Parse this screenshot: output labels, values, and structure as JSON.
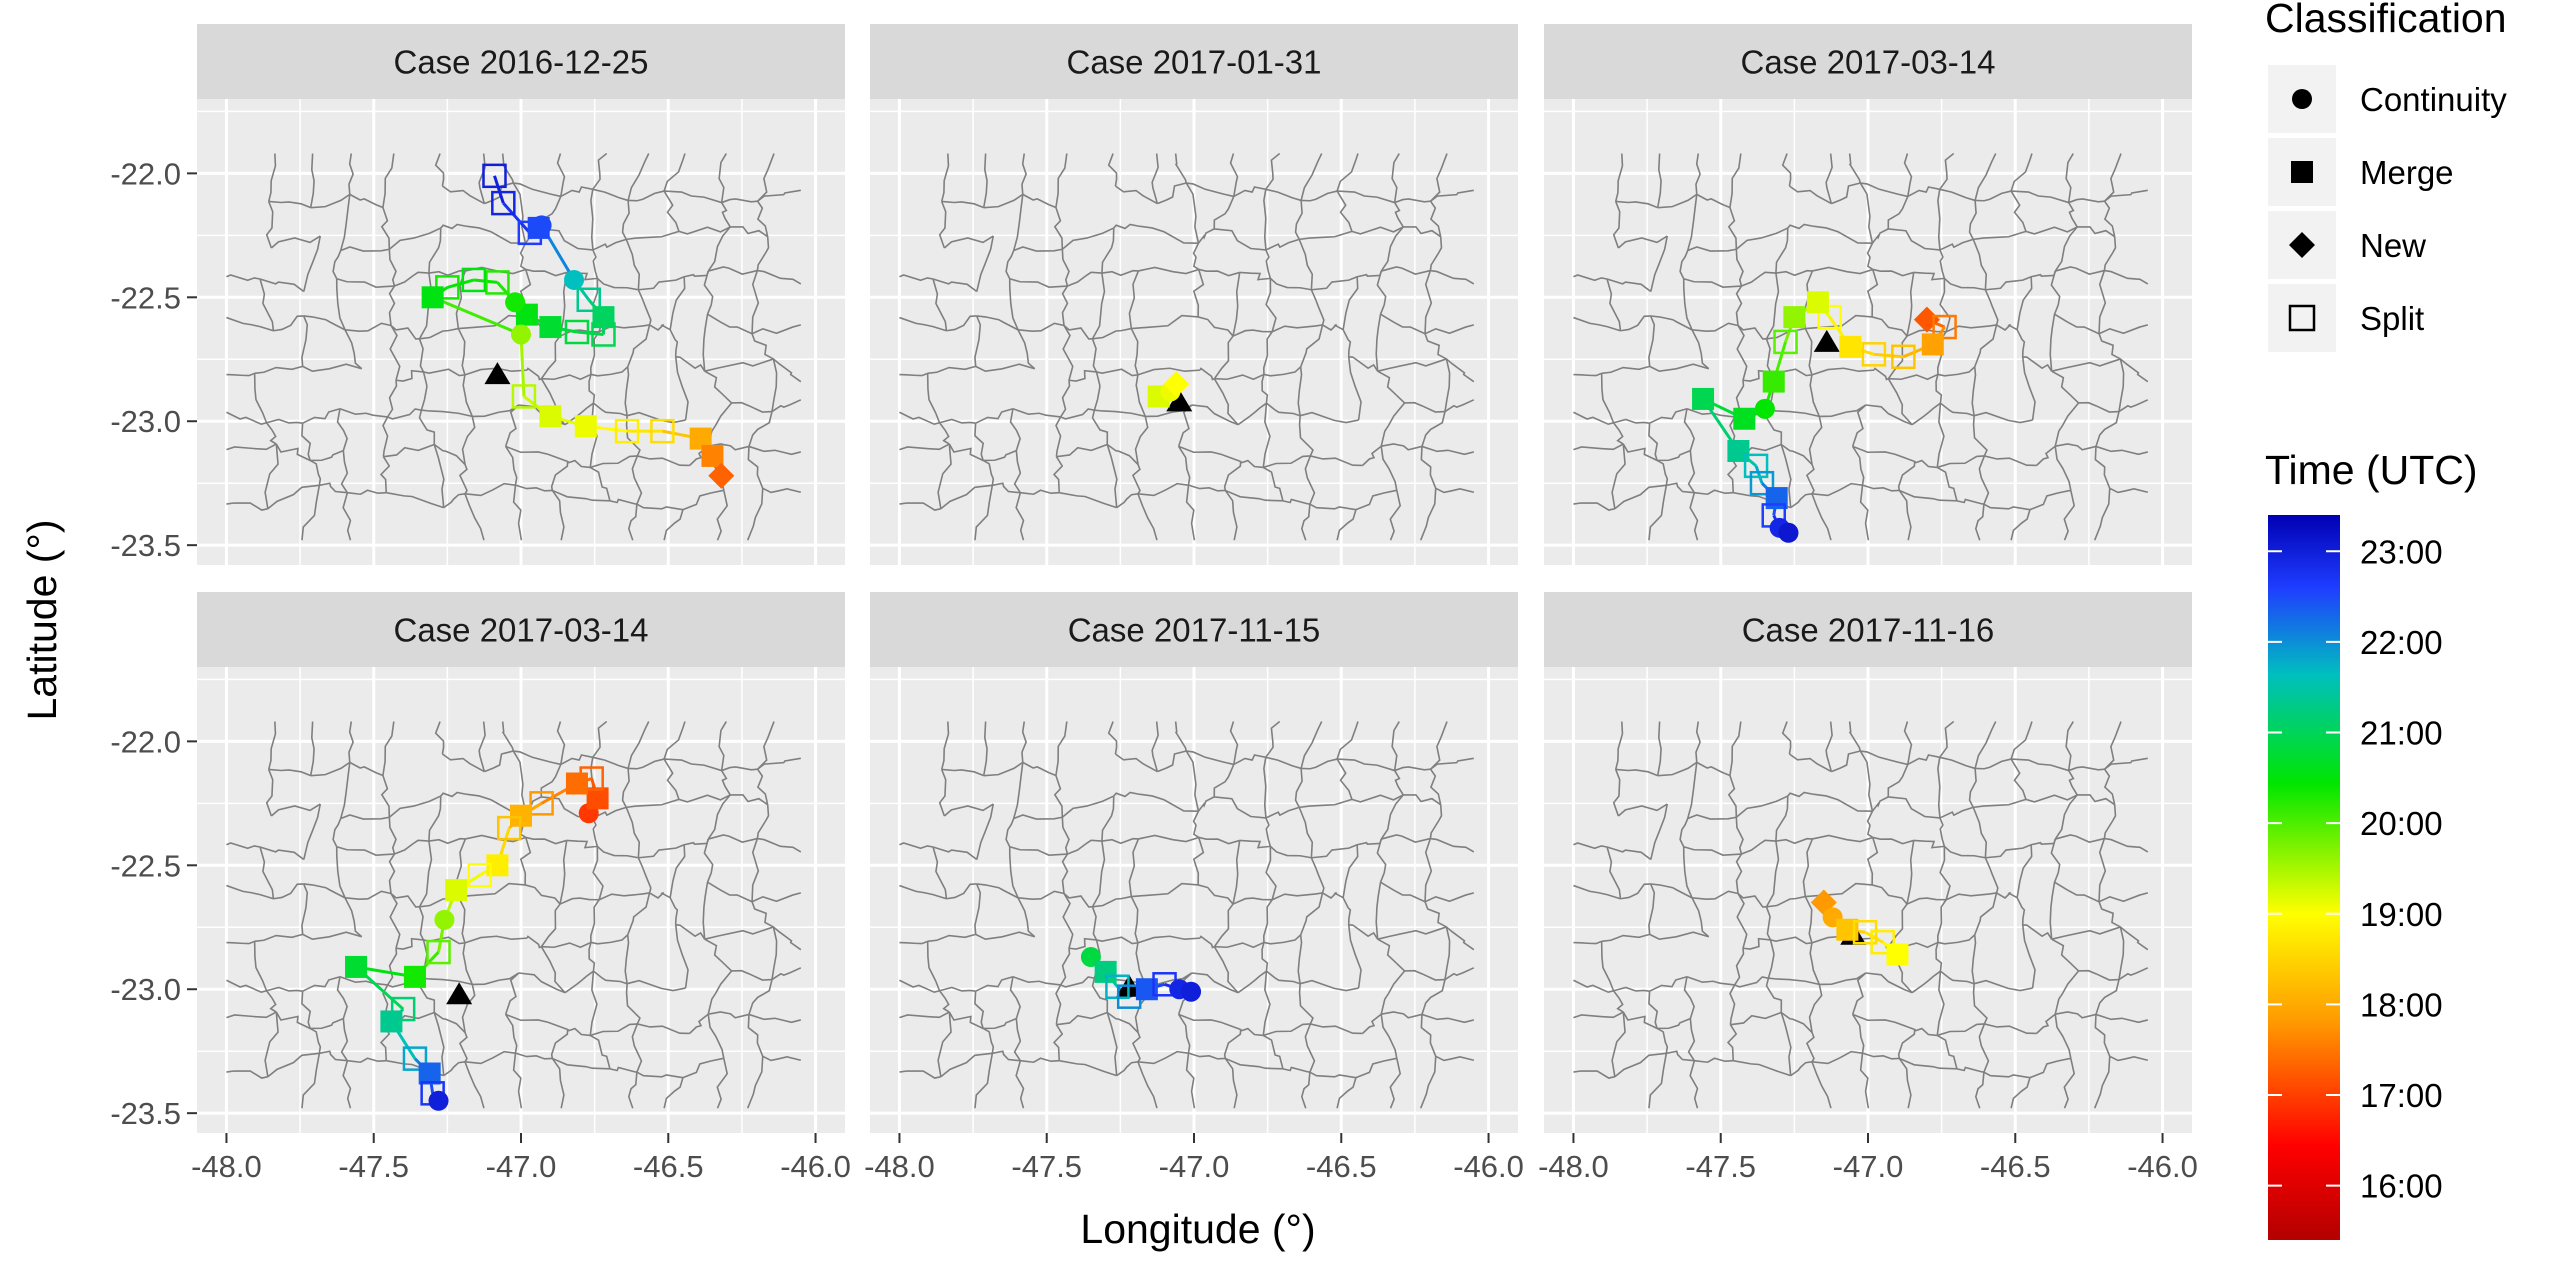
{
  "chart_data": {
    "type": "scatter",
    "xlabel": "Longitude (°)",
    "ylabel": "Latitude (°)",
    "xlim": [
      -48.1,
      -45.9
    ],
    "ylim": [
      -23.58,
      -21.7
    ],
    "x_ticks": [
      -48.0,
      -47.5,
      -47.0,
      -46.5,
      -46.0
    ],
    "x_tick_labels": [
      "-48.0",
      "-47.5",
      "-47.0",
      "-46.5",
      "-46.0"
    ],
    "y_ticks": [
      -22.0,
      -22.5,
      -23.0,
      -23.5
    ],
    "y_tick_labels": [
      "-22.0",
      "-22.5",
      "-23.0",
      "-23.5"
    ],
    "grid": true,
    "legend": {
      "shape_title": "Classification",
      "shapes": [
        {
          "label": "Continuity",
          "symbol": "circle"
        },
        {
          "label": "Merge",
          "symbol": "square"
        },
        {
          "label": "New",
          "symbol": "diamond"
        },
        {
          "label": "Split",
          "symbol": "open-square"
        }
      ],
      "color_title": "Time (UTC)",
      "color_range": [
        15.4,
        23.4
      ],
      "color_ticks": [
        16,
        17,
        18,
        19,
        20,
        21,
        22,
        23
      ],
      "color_tick_labels": [
        "16:00",
        "17:00",
        "18:00",
        "19:00",
        "20:00",
        "21:00",
        "22:00",
        "23:00"
      ],
      "placement": "right"
    },
    "panels": [
      {
        "title": "Case 2016-12-25",
        "radar": [
          -47.08,
          -22.81
        ],
        "track": [
          {
            "lon": -47.09,
            "lat": -22.01,
            "t": 23.0,
            "c": "Split"
          },
          {
            "lon": -47.06,
            "lat": -22.12,
            "t": 22.9,
            "c": "Split"
          },
          {
            "lon": -46.97,
            "lat": -22.24,
            "t": 22.6,
            "c": "Split"
          },
          {
            "lon": -46.94,
            "lat": -22.22,
            "t": 22.5,
            "c": "Merge"
          },
          {
            "lon": -46.93,
            "lat": -22.21,
            "t": 22.5,
            "c": "Continuity"
          },
          {
            "lon": -46.82,
            "lat": -22.43,
            "t": 21.6,
            "c": "Continuity"
          },
          {
            "lon": -46.77,
            "lat": -22.51,
            "t": 21.3,
            "c": "Split"
          },
          {
            "lon": -46.72,
            "lat": -22.58,
            "t": 21.0,
            "c": "Merge"
          },
          {
            "lon": -46.72,
            "lat": -22.65,
            "t": 20.9,
            "c": "Split"
          },
          {
            "lon": -46.81,
            "lat": -22.64,
            "t": 20.8,
            "c": "Split"
          },
          {
            "lon": -46.9,
            "lat": -22.62,
            "t": 20.7,
            "c": "Merge"
          },
          {
            "lon": -46.98,
            "lat": -22.57,
            "t": 20.5,
            "c": "Merge"
          },
          {
            "lon": -47.02,
            "lat": -22.52,
            "t": 20.3,
            "c": "Continuity"
          },
          {
            "lon": -47.08,
            "lat": -22.44,
            "t": 20.2,
            "c": "Split"
          },
          {
            "lon": -47.16,
            "lat": -22.43,
            "t": 20.5,
            "c": "Split"
          },
          {
            "lon": -47.25,
            "lat": -22.46,
            "t": 20.3,
            "c": "Split"
          },
          {
            "lon": -47.3,
            "lat": -22.5,
            "t": 20.5,
            "c": "Merge"
          },
          {
            "lon": -47.0,
            "lat": -22.65,
            "t": 19.6,
            "c": "Continuity"
          },
          {
            "lon": -46.99,
            "lat": -22.9,
            "t": 19.4,
            "c": "Split"
          },
          {
            "lon": -46.9,
            "lat": -22.98,
            "t": 19.2,
            "c": "Merge"
          },
          {
            "lon": -46.78,
            "lat": -23.02,
            "t": 19.1,
            "c": "Merge"
          },
          {
            "lon": -46.64,
            "lat": -23.04,
            "t": 18.8,
            "c": "Split"
          },
          {
            "lon": -46.52,
            "lat": -23.04,
            "t": 18.6,
            "c": "Split"
          },
          {
            "lon": -46.39,
            "lat": -23.07,
            "t": 18.0,
            "c": "Merge"
          },
          {
            "lon": -46.35,
            "lat": -23.14,
            "t": 17.6,
            "c": "Merge"
          },
          {
            "lon": -46.32,
            "lat": -23.22,
            "t": 17.3,
            "c": "New"
          }
        ]
      },
      {
        "title": "Case 2017-01-31",
        "radar": [
          -47.05,
          -22.92
        ],
        "track": [
          {
            "lon": -47.12,
            "lat": -22.9,
            "t": 19.2,
            "c": "Merge"
          },
          {
            "lon": -47.08,
            "lat": -22.88,
            "t": 19.1,
            "c": "Continuity"
          },
          {
            "lon": -47.06,
            "lat": -22.85,
            "t": 19.0,
            "c": "New"
          }
        ]
      },
      {
        "title": "Case 2017-03-14",
        "radar": [
          -47.14,
          -22.68
        ],
        "track": [
          {
            "lon": -46.8,
            "lat": -22.59,
            "t": 17.2,
            "c": "New"
          },
          {
            "lon": -46.74,
            "lat": -22.62,
            "t": 17.5,
            "c": "Split"
          },
          {
            "lon": -46.78,
            "lat": -22.69,
            "t": 17.9,
            "c": "Merge"
          },
          {
            "lon": -46.88,
            "lat": -22.74,
            "t": 18.3,
            "c": "Split"
          },
          {
            "lon": -46.98,
            "lat": -22.73,
            "t": 18.5,
            "c": "Split"
          },
          {
            "lon": -47.06,
            "lat": -22.7,
            "t": 18.7,
            "c": "Merge"
          },
          {
            "lon": -47.13,
            "lat": -22.58,
            "t": 19.0,
            "c": "Split"
          },
          {
            "lon": -47.17,
            "lat": -22.52,
            "t": 19.2,
            "c": "Merge"
          },
          {
            "lon": -47.25,
            "lat": -22.58,
            "t": 19.6,
            "c": "Merge"
          },
          {
            "lon": -47.28,
            "lat": -22.68,
            "t": 19.9,
            "c": "Split"
          },
          {
            "lon": -47.32,
            "lat": -22.84,
            "t": 20.1,
            "c": "Merge"
          },
          {
            "lon": -47.35,
            "lat": -22.95,
            "t": 20.4,
            "c": "Continuity"
          },
          {
            "lon": -47.42,
            "lat": -22.99,
            "t": 20.6,
            "c": "Merge"
          },
          {
            "lon": -47.56,
            "lat": -22.91,
            "t": 20.9,
            "c": "Merge"
          },
          {
            "lon": -47.44,
            "lat": -23.12,
            "t": 21.3,
            "c": "Merge"
          },
          {
            "lon": -47.38,
            "lat": -23.18,
            "t": 21.6,
            "c": "Split"
          },
          {
            "lon": -47.36,
            "lat": -23.25,
            "t": 21.9,
            "c": "Split"
          },
          {
            "lon": -47.31,
            "lat": -23.31,
            "t": 22.3,
            "c": "Merge"
          },
          {
            "lon": -47.32,
            "lat": -23.38,
            "t": 22.6,
            "c": "Split"
          },
          {
            "lon": -47.3,
            "lat": -23.43,
            "t": 22.9,
            "c": "Continuity"
          },
          {
            "lon": -47.27,
            "lat": -23.45,
            "t": 23.1,
            "c": "Continuity"
          }
        ]
      },
      {
        "title": "Case 2017-03-14",
        "radar": [
          -47.21,
          -23.02
        ],
        "track": [
          {
            "lon": -46.77,
            "lat": -22.29,
            "t": 16.9,
            "c": "Continuity"
          },
          {
            "lon": -46.74,
            "lat": -22.23,
            "t": 17.1,
            "c": "Merge"
          },
          {
            "lon": -46.76,
            "lat": -22.15,
            "t": 17.3,
            "c": "Split"
          },
          {
            "lon": -46.81,
            "lat": -22.17,
            "t": 17.4,
            "c": "Merge"
          },
          {
            "lon": -46.93,
            "lat": -22.25,
            "t": 17.8,
            "c": "Split"
          },
          {
            "lon": -47.0,
            "lat": -22.3,
            "t": 18.1,
            "c": "Merge"
          },
          {
            "lon": -47.04,
            "lat": -22.35,
            "t": 18.3,
            "c": "Split"
          },
          {
            "lon": -47.08,
            "lat": -22.5,
            "t": 18.8,
            "c": "Merge"
          },
          {
            "lon": -47.14,
            "lat": -22.54,
            "t": 19.0,
            "c": "Split"
          },
          {
            "lon": -47.22,
            "lat": -22.6,
            "t": 19.2,
            "c": "Merge"
          },
          {
            "lon": -47.26,
            "lat": -22.72,
            "t": 19.6,
            "c": "Continuity"
          },
          {
            "lon": -47.28,
            "lat": -22.85,
            "t": 19.9,
            "c": "Split"
          },
          {
            "lon": -47.36,
            "lat": -22.95,
            "t": 20.3,
            "c": "Merge"
          },
          {
            "lon": -47.56,
            "lat": -22.91,
            "t": 20.7,
            "c": "Merge"
          },
          {
            "lon": -47.4,
            "lat": -23.08,
            "t": 21.1,
            "c": "Split"
          },
          {
            "lon": -47.44,
            "lat": -23.13,
            "t": 21.3,
            "c": "Merge"
          },
          {
            "lon": -47.36,
            "lat": -23.28,
            "t": 21.8,
            "c": "Split"
          },
          {
            "lon": -47.31,
            "lat": -23.34,
            "t": 22.3,
            "c": "Merge"
          },
          {
            "lon": -47.3,
            "lat": -23.42,
            "t": 22.7,
            "c": "Split"
          },
          {
            "lon": -47.28,
            "lat": -23.45,
            "t": 23.0,
            "c": "Continuity"
          }
        ]
      },
      {
        "title": "Case 2017-11-15",
        "radar": [
          -47.22,
          -22.99
        ],
        "track": [
          {
            "lon": -47.35,
            "lat": -22.87,
            "t": 20.8,
            "c": "Continuity"
          },
          {
            "lon": -47.3,
            "lat": -22.93,
            "t": 21.2,
            "c": "Merge"
          },
          {
            "lon": -47.26,
            "lat": -22.99,
            "t": 21.7,
            "c": "Split"
          },
          {
            "lon": -47.22,
            "lat": -23.03,
            "t": 22.0,
            "c": "Split"
          },
          {
            "lon": -47.16,
            "lat": -23.0,
            "t": 22.4,
            "c": "Merge"
          },
          {
            "lon": -47.1,
            "lat": -22.98,
            "t": 22.7,
            "c": "Split"
          },
          {
            "lon": -47.05,
            "lat": -23.0,
            "t": 22.9,
            "c": "Continuity"
          },
          {
            "lon": -47.01,
            "lat": -23.01,
            "t": 23.0,
            "c": "Continuity"
          }
        ]
      },
      {
        "title": "Case 2017-11-16",
        "radar": [
          -47.05,
          -22.78
        ],
        "track": [
          {
            "lon": -47.15,
            "lat": -22.65,
            "t": 17.8,
            "c": "New"
          },
          {
            "lon": -47.12,
            "lat": -22.71,
            "t": 18.0,
            "c": "Continuity"
          },
          {
            "lon": -47.07,
            "lat": -22.76,
            "t": 18.3,
            "c": "Merge"
          },
          {
            "lon": -47.01,
            "lat": -22.77,
            "t": 18.6,
            "c": "Split"
          },
          {
            "lon": -46.95,
            "lat": -22.81,
            "t": 18.8,
            "c": "Split"
          },
          {
            "lon": -46.9,
            "lat": -22.86,
            "t": 19.0,
            "c": "Merge"
          }
        ]
      }
    ]
  }
}
